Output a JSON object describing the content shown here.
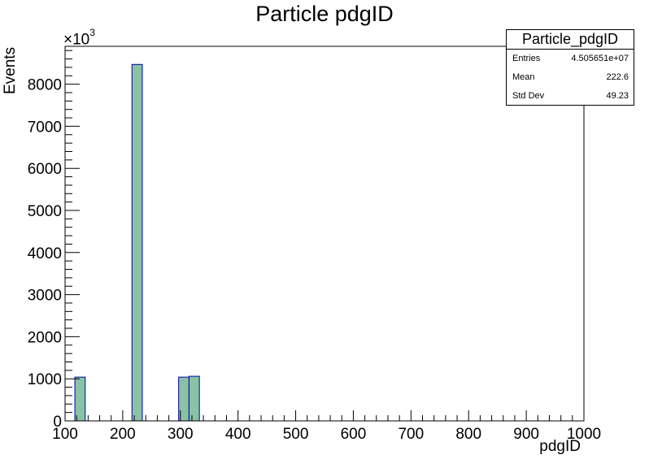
{
  "chart_data": {
    "type": "bar",
    "title": "Particle pdgID",
    "xlabel": "pdgID",
    "ylabel": "Events",
    "y_multiplier": "×10",
    "y_multiplier_exponent": "3",
    "xlim": [
      100,
      1000
    ],
    "ylim": [
      0,
      8900
    ],
    "xticks": [
      100,
      200,
      300,
      400,
      500,
      600,
      700,
      800,
      900,
      1000
    ],
    "yticks": [
      0,
      1000,
      2000,
      3000,
      4000,
      5000,
      6000,
      7000,
      8000
    ],
    "bins": [
      {
        "x0": 117,
        "x1": 135,
        "value": 1040
      },
      {
        "x0": 216,
        "x1": 234,
        "value": 8470
      },
      {
        "x0": 297,
        "x1": 315,
        "value": 1040
      },
      {
        "x0": 315,
        "x1": 333,
        "value": 1060
      }
    ],
    "fill_color": "#89c2a4",
    "line_color": "#0000a0",
    "stats": {
      "name": "Particle_pdgID",
      "rows": [
        {
          "label": "Entries",
          "value": "4.505651e+07"
        },
        {
          "label": "Mean",
          "value": "222.6"
        },
        {
          "label": "Std Dev",
          "value": "49.23"
        }
      ]
    }
  }
}
